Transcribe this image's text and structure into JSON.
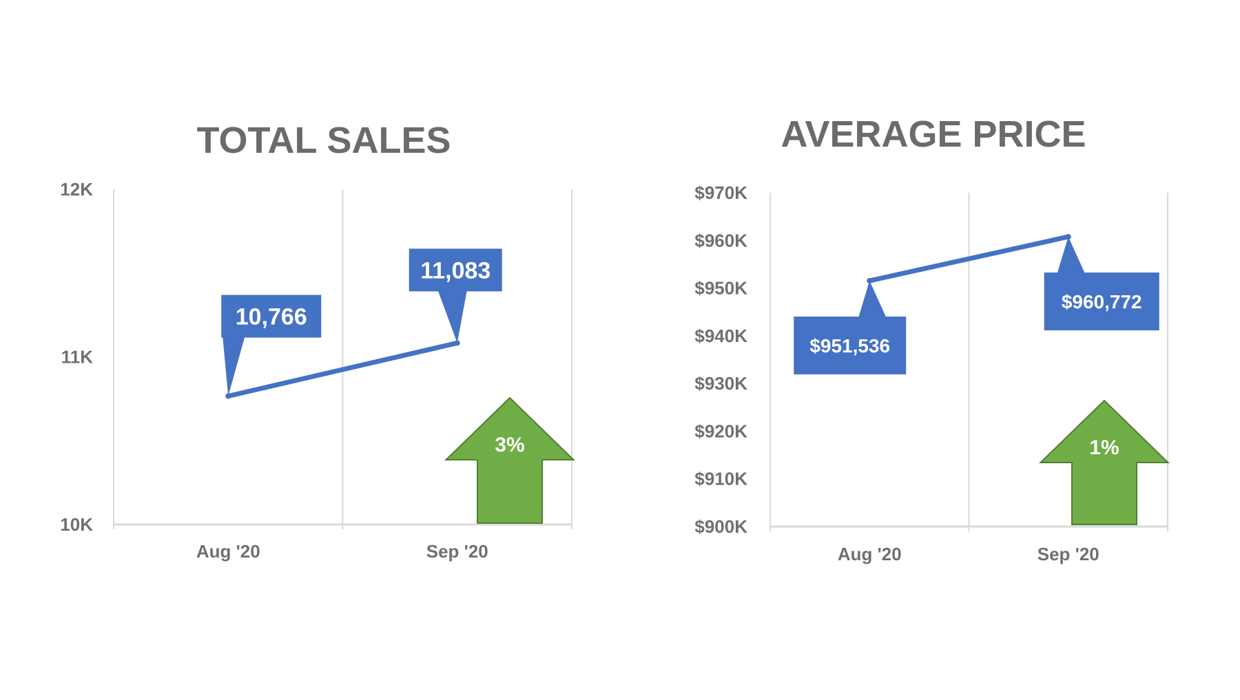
{
  "colors": {
    "line": "#4472c4",
    "callout": "#4472c4",
    "arrow_fill": "#70ad47",
    "arrow_stroke": "#507e32",
    "grid": "#d9d9d9",
    "axis_text": "#707070",
    "title_text": "#6b6b6b"
  },
  "chart_data": [
    {
      "type": "line",
      "title": "TOTAL SALES",
      "categories": [
        "Aug '20",
        "Sep '20"
      ],
      "series": [
        {
          "values": [
            10766,
            11083
          ]
        }
      ],
      "data_labels": [
        "10,766",
        "11,083"
      ],
      "ylim": [
        10000,
        12000
      ],
      "yticks": [
        {
          "value": 10000,
          "label": "10K"
        },
        {
          "value": 11000,
          "label": "11K"
        },
        {
          "value": 12000,
          "label": "12K"
        }
      ],
      "grid": "vertical",
      "change": {
        "direction": "up",
        "label": "3%"
      }
    },
    {
      "type": "line",
      "title": "AVERAGE PRICE",
      "categories": [
        "Aug '20",
        "Sep '20"
      ],
      "series": [
        {
          "values": [
            951536,
            960772
          ]
        }
      ],
      "data_labels": [
        "$951,536",
        "$960,772"
      ],
      "ylim": [
        900000,
        970000
      ],
      "yticks": [
        {
          "value": 900000,
          "label": "$900K"
        },
        {
          "value": 910000,
          "label": "$910K"
        },
        {
          "value": 920000,
          "label": "$920K"
        },
        {
          "value": 930000,
          "label": "$930K"
        },
        {
          "value": 940000,
          "label": "$940K"
        },
        {
          "value": 950000,
          "label": "$950K"
        },
        {
          "value": 960000,
          "label": "$960K"
        },
        {
          "value": 970000,
          "label": "$970K"
        }
      ],
      "grid": "vertical",
      "change": {
        "direction": "up",
        "label": "1%"
      }
    }
  ]
}
